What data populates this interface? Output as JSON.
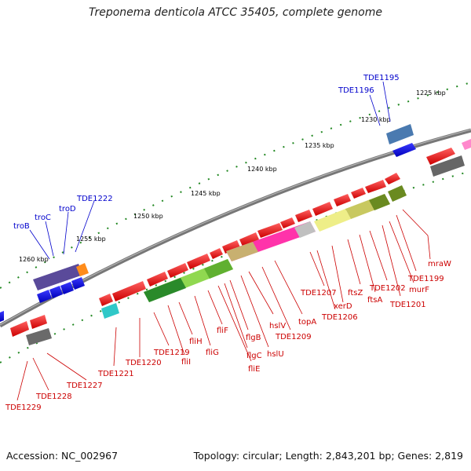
{
  "title": "Treponema denticola ATCC 35405, complete genome",
  "footer": {
    "accession": "Accession: NC_002967",
    "topology": "Topology: circular; Length: 2,843,201 bp; Genes: 2,819"
  },
  "ticks": [
    "1225 kbp",
    "1230 kbp",
    "1235 kbp",
    "1240 kbp",
    "1245 kbp",
    "1250 kbp",
    "1255 kbp",
    "1260 kbp"
  ],
  "labels_blue": [
    "TDE1195",
    "TDE1196",
    "troB",
    "troC",
    "troD",
    "TDE1222"
  ],
  "labels_red": [
    "mraW",
    "TDE1199",
    "murF",
    "TDE1201",
    "TDE1202",
    "ftsA",
    "ftsZ",
    "TDE1206",
    "xerD",
    "TDE1207",
    "topA",
    "TDE1209",
    "hslV",
    "hslU",
    "flgB",
    "flgC",
    "fliE",
    "fliF",
    "fliG",
    "fliH",
    "fliI",
    "TDE1219",
    "TDE1220",
    "TDE1221",
    "TDE1227",
    "TDE1228",
    "TDE1229"
  ],
  "colors": {
    "backbone": "#808080",
    "forward_gene": "#ff0000",
    "reverse_gene": "#0000ff",
    "label_red": "#cc0000",
    "label_blue": "#0000cc"
  }
}
